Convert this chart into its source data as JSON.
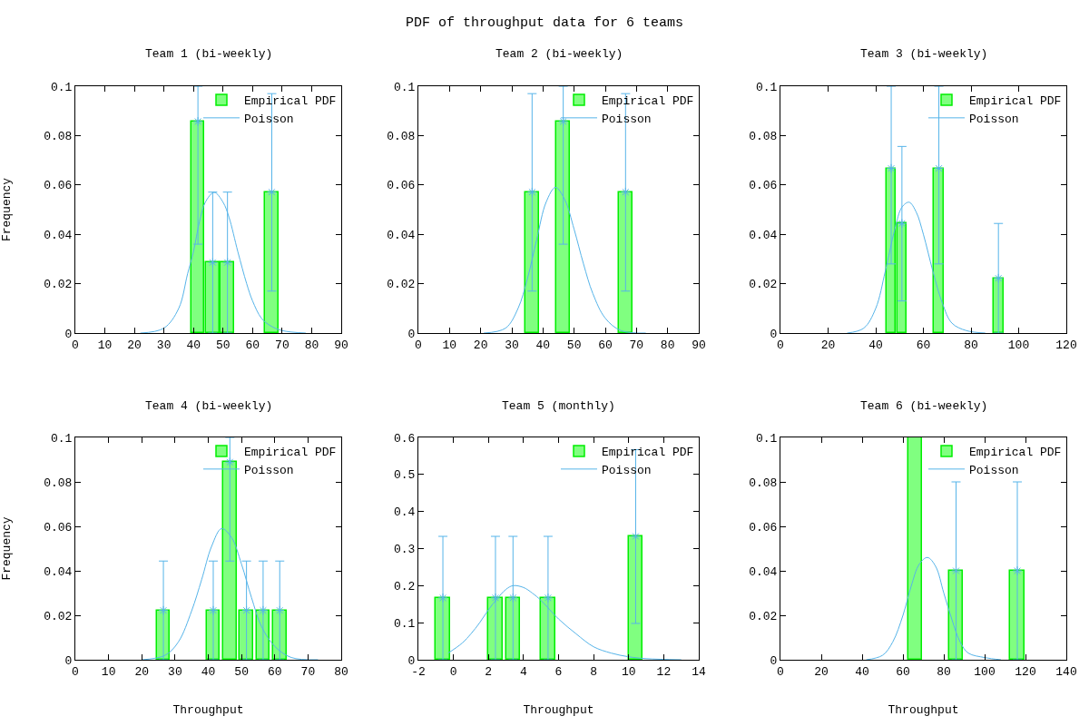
{
  "chart_data": [
    {
      "type": "bar",
      "title": "Team 1 (bi-weekly)",
      "ylabel": "Frequency",
      "annotations": [
        "PDF of throughput data for 6 teams"
      ],
      "xlim": [
        0,
        90
      ],
      "xticks": [
        0,
        10,
        20,
        30,
        40,
        50,
        60,
        70,
        80,
        90
      ],
      "ylim": [
        0,
        0.1
      ],
      "yticks": [
        0,
        0.02,
        0.04,
        0.06,
        0.08,
        0.1
      ],
      "legend": "top right",
      "series": [
        {
          "name": "Empirical PDF",
          "color": "#80ff80",
          "x": [
            41.5,
            46.5,
            51.5,
            66.5
          ],
          "values": [
            0.0857,
            0.0286,
            0.0286,
            0.0571
          ]
        },
        {
          "type": "scatter",
          "marker": "cross",
          "color": "#56b4e9",
          "x": [
            41.5,
            46.5,
            51.5,
            66.5
          ],
          "values": [
            0.0857,
            0.0286,
            0.0286,
            0.0571
          ],
          "errors": [
            [
              0.036,
              0.1
            ],
            [
              0,
              0.0571
            ],
            [
              0,
              0.0571
            ],
            [
              0.017,
              0.097
            ]
          ]
        },
        {
          "name": "Poisson",
          "type": "line",
          "color": "#56b4e9",
          "x": [
            22,
            30,
            35,
            38,
            40,
            42,
            44,
            47,
            50,
            52,
            55,
            58,
            60,
            63,
            66,
            70,
            78
          ],
          "values": [
            0,
            0.002,
            0.01,
            0.024,
            0.033,
            0.045,
            0.053,
            0.057,
            0.053,
            0.047,
            0.033,
            0.02,
            0.013,
            0.006,
            0.003,
            0.001,
            0
          ]
        }
      ]
    },
    {
      "type": "bar",
      "title": "Team 2 (bi-weekly)",
      "xlim": [
        0,
        90
      ],
      "xticks": [
        0,
        10,
        20,
        30,
        40,
        50,
        60,
        70,
        80,
        90
      ],
      "ylim": [
        0,
        0.1
      ],
      "yticks": [
        0,
        0.02,
        0.04,
        0.06,
        0.08,
        0.1
      ],
      "legend": "top right",
      "series": [
        {
          "name": "Empirical PDF",
          "color": "#80ff80",
          "x": [
            36.5,
            46.5,
            66.5
          ],
          "values": [
            0.0571,
            0.0857,
            0.0571
          ]
        },
        {
          "type": "scatter",
          "marker": "cross",
          "color": "#56b4e9",
          "x": [
            36.5,
            46.5,
            66.5
          ],
          "values": [
            0.0571,
            0.0857,
            0.0571
          ],
          "errors": [
            [
              0.017,
              0.097
            ],
            [
              0.036,
              0.1
            ],
            [
              0.017,
              0.097
            ]
          ]
        },
        {
          "name": "Poisson",
          "type": "line",
          "color": "#56b4e9",
          "x": [
            21,
            28,
            32,
            35,
            38,
            41,
            44,
            47,
            50,
            53,
            56,
            60,
            65,
            73
          ],
          "values": [
            0,
            0.002,
            0.01,
            0.022,
            0.038,
            0.053,
            0.059,
            0.054,
            0.042,
            0.028,
            0.016,
            0.006,
            0.001,
            0
          ]
        }
      ]
    },
    {
      "type": "bar",
      "title": "Team 3 (bi-weekly)",
      "xlim": [
        0,
        120
      ],
      "xticks": [
        0,
        20,
        40,
        60,
        80,
        100,
        120
      ],
      "ylim": [
        0,
        0.1
      ],
      "yticks": [
        0,
        0.02,
        0.04,
        0.06,
        0.08,
        0.1
      ],
      "legend": "top right",
      "series": [
        {
          "name": "Empirical PDF",
          "color": "#80ff80",
          "x": [
            46.5,
            51,
            66.5,
            91.5
          ],
          "values": [
            0.0667,
            0.0444,
            0.0667,
            0.0222
          ]
        },
        {
          "type": "scatter",
          "marker": "cross",
          "color": "#56b4e9",
          "x": [
            46.5,
            51,
            66.5,
            91.5
          ],
          "values": [
            0.0667,
            0.0444,
            0.0667,
            0.0222
          ],
          "errors": [
            [
              0.028,
              0.1
            ],
            [
              0.013,
              0.0756
            ],
            [
              0.028,
              0.1
            ],
            [
              0,
              0.0444
            ]
          ]
        },
        {
          "name": "Poisson",
          "type": "line",
          "color": "#56b4e9",
          "x": [
            28,
            35,
            40,
            44,
            48,
            51,
            54,
            57,
            60,
            64,
            68,
            72,
            78,
            86
          ],
          "values": [
            0,
            0.002,
            0.01,
            0.025,
            0.042,
            0.051,
            0.053,
            0.049,
            0.04,
            0.025,
            0.012,
            0.004,
            0.001,
            0
          ]
        }
      ]
    },
    {
      "type": "bar",
      "title": "Team 4 (bi-weekly)",
      "xlabel": "Throughput",
      "ylabel": "Frequency",
      "xlim": [
        0,
        80
      ],
      "xticks": [
        0,
        10,
        20,
        30,
        40,
        50,
        60,
        70,
        80
      ],
      "ylim": [
        0,
        0.1
      ],
      "yticks": [
        0,
        0.02,
        0.04,
        0.06,
        0.08,
        0.1
      ],
      "legend": "top right",
      "series": [
        {
          "name": "Empirical PDF",
          "color": "#80ff80",
          "x": [
            26.5,
            41.5,
            46.5,
            51.5,
            56.5,
            61.5
          ],
          "values": [
            0.0222,
            0.0222,
            0.0889,
            0.0222,
            0.0222,
            0.0222
          ]
        },
        {
          "type": "scatter",
          "marker": "cross",
          "color": "#56b4e9",
          "x": [
            26.5,
            41.5,
            46.5,
            51.5,
            56.5,
            61.5
          ],
          "values": [
            0.0222,
            0.0222,
            0.0889,
            0.0222,
            0.0222,
            0.0222
          ],
          "errors": [
            [
              0,
              0.0444
            ],
            [
              0,
              0.0444
            ],
            [
              0.0444,
              0.1
            ],
            [
              0,
              0.0444
            ],
            [
              0,
              0.0444
            ],
            [
              0,
              0.0444
            ]
          ]
        },
        {
          "name": "Poisson",
          "type": "line",
          "color": "#56b4e9",
          "x": [
            20,
            27,
            31,
            35,
            38,
            41,
            44,
            47,
            50,
            53,
            56,
            60,
            65,
            73
          ],
          "values": [
            0,
            0.002,
            0.008,
            0.022,
            0.036,
            0.051,
            0.059,
            0.055,
            0.043,
            0.028,
            0.015,
            0.006,
            0.001,
            0
          ]
        }
      ]
    },
    {
      "type": "bar",
      "title": "Team 5 (monthly)",
      "xlabel": "Throughput",
      "xlim": [
        -2,
        14
      ],
      "xticks": [
        -2,
        0,
        2,
        4,
        6,
        8,
        10,
        12,
        14
      ],
      "ylim": [
        0,
        0.6
      ],
      "yticks": [
        0,
        0.1,
        0.2,
        0.3,
        0.4,
        0.5,
        0.6
      ],
      "legend": "top right",
      "series": [
        {
          "name": "Empirical PDF",
          "color": "#80ff80",
          "x": [
            -0.6,
            2.4,
            3.4,
            5.4,
            10.4
          ],
          "values": [
            0.167,
            0.167,
            0.167,
            0.167,
            0.333
          ]
        },
        {
          "type": "scatter",
          "marker": "cross",
          "color": "#56b4e9",
          "x": [
            -0.6,
            2.4,
            3.4,
            5.4,
            10.4
          ],
          "values": [
            0.167,
            0.167,
            0.167,
            0.167,
            0.333
          ],
          "errors": [
            [
              0,
              0.333
            ],
            [
              0,
              0.333
            ],
            [
              0,
              0.333
            ],
            [
              0,
              0.333
            ],
            [
              0.098,
              0.567
            ]
          ]
        },
        {
          "name": "Poisson",
          "type": "line",
          "color": "#56b4e9",
          "x": [
            -0.3,
            0.5,
            1,
            1.5,
            2,
            2.5,
            3,
            3.4,
            4,
            4.5,
            5,
            6,
            7,
            8,
            9,
            10,
            11,
            13
          ],
          "values": [
            0.018,
            0.045,
            0.07,
            0.1,
            0.135,
            0.165,
            0.19,
            0.2,
            0.195,
            0.18,
            0.16,
            0.11,
            0.07,
            0.035,
            0.018,
            0.008,
            0.003,
            0
          ]
        }
      ]
    },
    {
      "type": "bar",
      "title": "Team 6 (bi-weekly)",
      "xlabel": "Throughput",
      "xlim": [
        0,
        140
      ],
      "xticks": [
        0,
        20,
        40,
        60,
        80,
        100,
        120,
        140
      ],
      "ylim": [
        0,
        0.1
      ],
      "yticks": [
        0,
        0.02,
        0.04,
        0.06,
        0.08,
        0.1
      ],
      "legend": "top right",
      "series": [
        {
          "name": "Empirical PDF",
          "color": "#80ff80",
          "x": [
            66,
            86,
            116
          ],
          "values": [
            0.1,
            0.04,
            0.04
          ]
        },
        {
          "type": "scatter",
          "marker": "cross",
          "color": "#56b4e9",
          "x": [
            86,
            116
          ],
          "values": [
            0.04,
            0.04
          ],
          "errors": [
            [
              0,
              0.08
            ],
            [
              0,
              0.08
            ]
          ]
        },
        {
          "name": "Poisson",
          "type": "line",
          "color": "#56b4e9",
          "x": [
            42,
            50,
            55,
            60,
            64,
            68,
            72,
            76,
            80,
            84,
            88,
            92,
            100,
            108
          ],
          "values": [
            0,
            0.002,
            0.008,
            0.02,
            0.033,
            0.043,
            0.046,
            0.042,
            0.03,
            0.018,
            0.008,
            0.003,
            0.001,
            0
          ]
        }
      ]
    }
  ]
}
